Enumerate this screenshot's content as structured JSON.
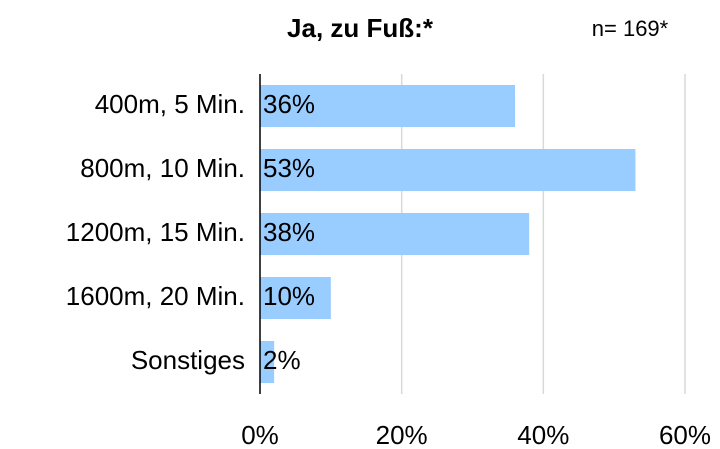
{
  "chart_data": {
    "type": "bar",
    "orientation": "horizontal",
    "title": "Ja, zu Fuß:*",
    "annotation": "n= 169*",
    "categories": [
      "400m, 5 Min.",
      "800m, 10 Min.",
      "1200m, 15 Min.",
      "1600m, 20 Min.",
      "Sonstiges"
    ],
    "values": [
      36,
      53,
      38,
      10,
      2
    ],
    "value_labels": [
      "36%",
      "53%",
      "38%",
      "10%",
      "2%"
    ],
    "color": "#99ccff",
    "xlim": [
      0,
      60
    ],
    "xticks": [
      {
        "value": 0,
        "label": "0%"
      },
      {
        "value": 20,
        "label": "20%"
      },
      {
        "value": 40,
        "label": "40%"
      },
      {
        "value": 60,
        "label": "60%"
      }
    ],
    "grid": true
  }
}
